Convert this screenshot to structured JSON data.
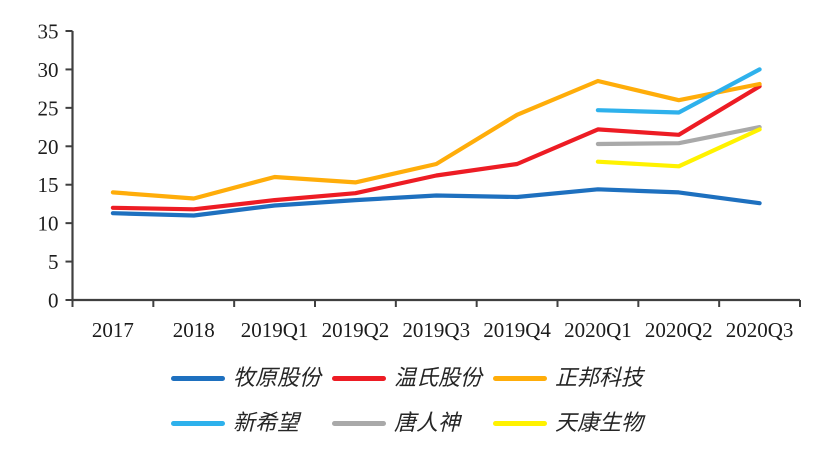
{
  "chart_data": {
    "type": "line",
    "title": "",
    "xlabel": "",
    "ylabel": "",
    "categories": [
      "2017",
      "2018",
      "2019Q1",
      "2019Q2",
      "2019Q3",
      "2019Q4",
      "2020Q1",
      "2020Q2",
      "2020Q3"
    ],
    "y_ticks": [
      0,
      5,
      10,
      15,
      20,
      25,
      30,
      35
    ],
    "ylim": [
      0,
      35
    ],
    "grid": false,
    "legend_position": "bottom",
    "axis_color": "#3f3f3f",
    "tick_label_color": "#1c1c1c",
    "series": [
      {
        "name": "牧原股份",
        "color": "#1E70BF",
        "values": [
          11.3,
          11.0,
          12.3,
          13.0,
          13.6,
          13.4,
          14.4,
          14.0,
          12.6
        ]
      },
      {
        "name": "温氏股份",
        "color": "#ED1C24",
        "values": [
          12.0,
          11.8,
          13.0,
          13.9,
          16.2,
          17.7,
          22.2,
          21.5,
          27.8
        ]
      },
      {
        "name": "正邦科技",
        "color": "#FFAD0A",
        "values": [
          14.0,
          13.2,
          16.0,
          15.3,
          17.7,
          24.1,
          28.5,
          26.0,
          28.1
        ]
      },
      {
        "name": "新希望",
        "color": "#2EB1EC",
        "values": [
          null,
          null,
          null,
          null,
          null,
          null,
          24.7,
          24.4,
          30.0
        ]
      },
      {
        "name": "唐人神",
        "color": "#A9A9A9",
        "values": [
          null,
          null,
          null,
          null,
          null,
          null,
          20.3,
          20.4,
          22.5
        ]
      },
      {
        "name": "天康生物",
        "color": "#FFF200",
        "values": [
          null,
          null,
          null,
          null,
          null,
          null,
          18.0,
          17.4,
          22.2
        ]
      }
    ]
  }
}
